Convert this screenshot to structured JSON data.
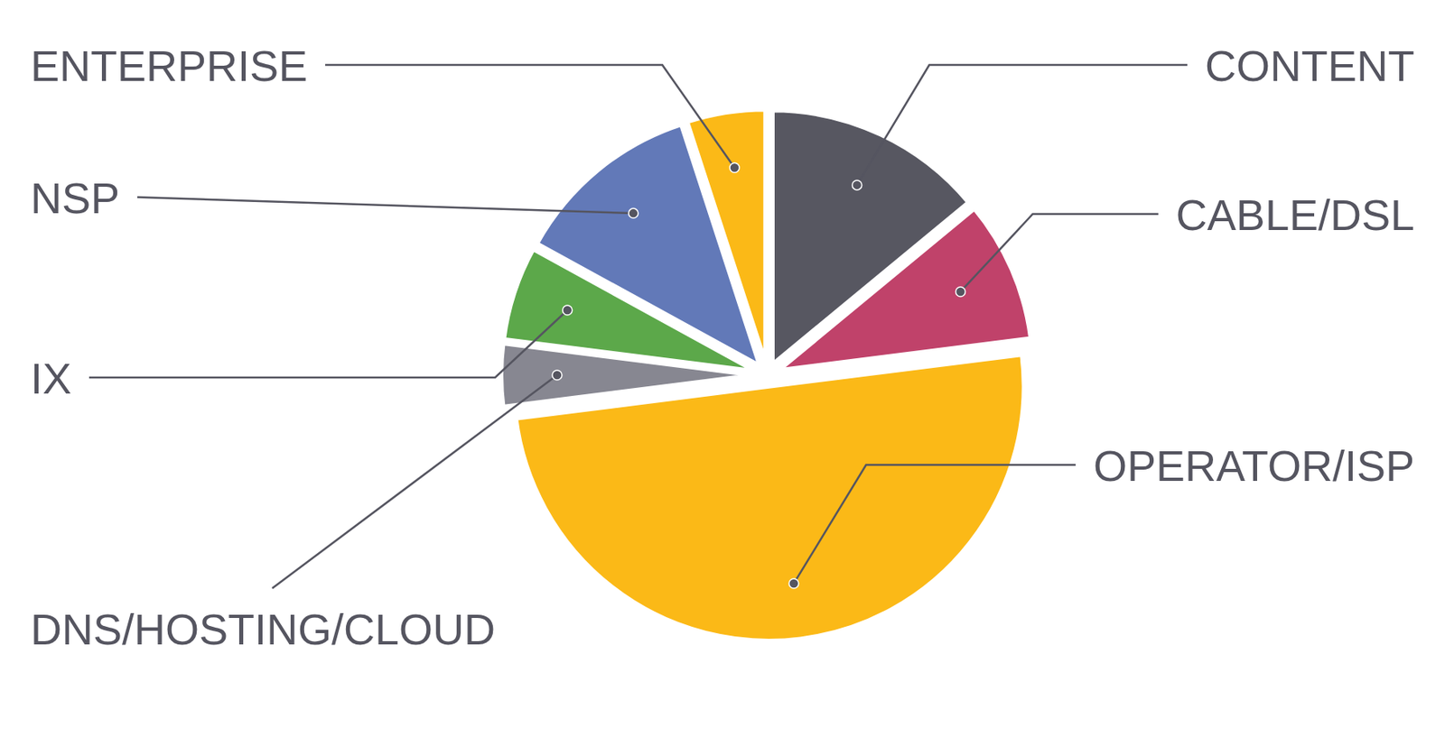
{
  "chart_data": {
    "type": "pie",
    "categories": [
      "CONTENT",
      "CABLE/DSL",
      "OPERATOR/ISP",
      "DNS/HOSTING/CLOUD",
      "IX",
      "NSP",
      "ENTERPRISE"
    ],
    "values": [
      14,
      9,
      50,
      4,
      6,
      12,
      5
    ],
    "colors": [
      "#575761",
      "#c0426a",
      "#fbb917",
      "#878791",
      "#5ca84a",
      "#6279b8",
      "#fbb917"
    ]
  }
}
